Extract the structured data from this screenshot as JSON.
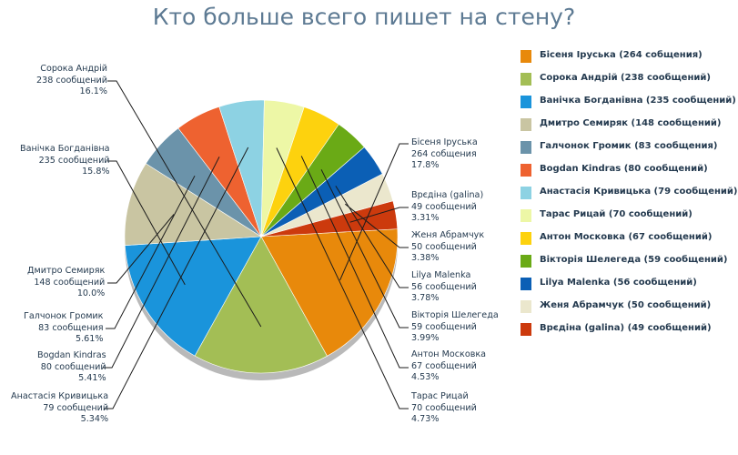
{
  "chart_data": {
    "type": "pie",
    "title": "Кто больше всего пишет на стену?",
    "slices": [
      {
        "name": "Бісеня Іруська",
        "value": 264,
        "percent": 17.8,
        "count_label": "264 собщения",
        "percent_label": "17.8%",
        "legend": "Бісеня Іруська (264 собщения)",
        "color": "#e8890b"
      },
      {
        "name": "Сорока Андрій",
        "value": 238,
        "percent": 16.1,
        "count_label": "238 сообщений",
        "percent_label": "16.1%",
        "legend": "Сорока Андрій (238 сообщений)",
        "color": "#a3be55"
      },
      {
        "name": "Ванічка Богданівна",
        "value": 235,
        "percent": 15.8,
        "count_label": "235 сообщений",
        "percent_label": "15.8%",
        "legend": "Ванічка Богданівна (235 сообщений)",
        "color": "#1a94db"
      },
      {
        "name": "Дмитро Семиряк",
        "value": 148,
        "percent": 10.0,
        "count_label": "148 сообщений",
        "percent_label": "10.0%",
        "legend": "Дмитро Семиряк (148 сообщений)",
        "color": "#c9c5a2"
      },
      {
        "name": "Галчонок Громик",
        "value": 83,
        "percent": 5.61,
        "count_label": "83 сообщения",
        "percent_label": "5.61%",
        "legend": "Галчонок Громик (83 сообщения)",
        "color": "#6b93aa"
      },
      {
        "name": "Bogdan Kindras",
        "value": 80,
        "percent": 5.41,
        "count_label": "80 сообщений",
        "percent_label": "5.41%",
        "legend": "Bogdan Kindras (80 сообщений)",
        "color": "#ee6230"
      },
      {
        "name": "Анастасія Кривицька",
        "value": 79,
        "percent": 5.34,
        "count_label": "79 сообщений",
        "percent_label": "5.34%",
        "legend": "Анастасія Кривицька (79 сообщений)",
        "color": "#8dd2e3"
      },
      {
        "name": "Тарас Рицай",
        "value": 70,
        "percent": 4.73,
        "count_label": "70 сообщений",
        "percent_label": "4.73%",
        "legend": "Тарас Рицай (70 сообщений)",
        "color": "#edf7a6"
      },
      {
        "name": "Антон Московка",
        "value": 67,
        "percent": 4.53,
        "count_label": "67 сообщений",
        "percent_label": "4.53%",
        "legend": "Антон Московка (67 сообщений)",
        "color": "#fdd20e"
      },
      {
        "name": "Вікторія Шелегеда",
        "value": 59,
        "percent": 3.99,
        "count_label": "59 сообщений",
        "percent_label": "3.99%",
        "legend": "Вікторія Шелегеда (59 сообщений)",
        "color": "#6aaa16"
      },
      {
        "name": "Lilya Malenka",
        "value": 56,
        "percent": 3.78,
        "count_label": "56 сообщений",
        "percent_label": "3.78%",
        "legend": "Lilya Malenka (56 сообщений)",
        "color": "#0b5fb5"
      },
      {
        "name": "Женя Абрамчук",
        "value": 50,
        "percent": 3.38,
        "count_label": "50 сообщений",
        "percent_label": "3.38%",
        "legend": "Женя Абрамчук (50 сообщений)",
        "color": "#ebe7cd"
      },
      {
        "name": "Врєдіна (galina)",
        "value": 49,
        "percent": 3.31,
        "count_label": "49 сообщений",
        "percent_label": "3.31%",
        "legend": "Врєдіна (galina) (49 сообщений)",
        "color": "#cc3a0d"
      }
    ]
  }
}
